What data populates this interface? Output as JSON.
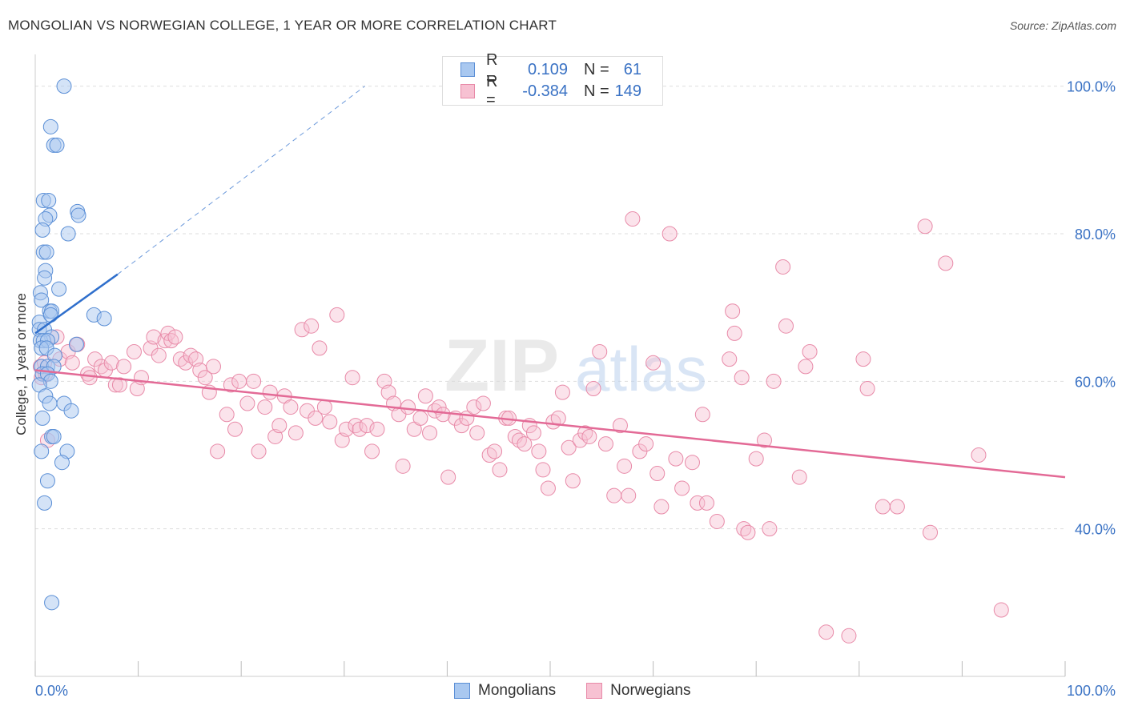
{
  "header": {
    "title": "MONGOLIAN VS NORWEGIAN COLLEGE, 1 YEAR OR MORE CORRELATION CHART",
    "source": "Source: ZipAtlas.com"
  },
  "legend": {
    "r_label": "R =",
    "n_label": "N =",
    "series": [
      {
        "name": "Mongolians",
        "r": "0.109",
        "n": "61"
      },
      {
        "name": "Norwegians",
        "r": "-0.384",
        "n": "149"
      }
    ]
  },
  "colors": {
    "mongolian_fill": "#a9c8f0",
    "mongolian_stroke": "#5b8fd6",
    "mongolian_line": "#2f6fcc",
    "norwegian_fill": "#f7c1d2",
    "norwegian_stroke": "#e88aa8",
    "norwegian_line": "#e36a96",
    "axis_label": "#3a72c4",
    "grid": "#dddddd"
  },
  "watermark": {
    "zip": "ZIP",
    "atlas": "atlas"
  },
  "chart_data": {
    "type": "scatter",
    "title": "MONGOLIAN VS NORWEGIAN COLLEGE, 1 YEAR OR MORE CORRELATION CHART",
    "xlabel": "",
    "ylabel": "College, 1 year or more",
    "xlim": [
      0,
      100
    ],
    "ylim": [
      20,
      103
    ],
    "x_tick_labels": [
      "0.0%",
      "100.0%"
    ],
    "y_ticks": [
      40,
      60,
      80,
      100
    ],
    "y_tick_labels": [
      "40.0%",
      "60.0%",
      "80.0%",
      "100.0%"
    ],
    "grid": true,
    "series": [
      {
        "name": "Mongolians",
        "trend": {
          "x": [
            0,
            8
          ],
          "y": [
            66.5,
            74.5
          ],
          "extended_to": [
            32,
            100
          ]
        },
        "points": [
          [
            2.8,
            100
          ],
          [
            1.5,
            94.5
          ],
          [
            1.8,
            92
          ],
          [
            2.1,
            92
          ],
          [
            0.8,
            84.5
          ],
          [
            1.3,
            84.5
          ],
          [
            1.4,
            82.5
          ],
          [
            4.1,
            83
          ],
          [
            4.2,
            82.5
          ],
          [
            1.0,
            82
          ],
          [
            0.7,
            80.5
          ],
          [
            3.2,
            80
          ],
          [
            0.8,
            77.5
          ],
          [
            1.1,
            77.5
          ],
          [
            1.0,
            75
          ],
          [
            0.9,
            74
          ],
          [
            2.3,
            72.5
          ],
          [
            0.5,
            72
          ],
          [
            0.6,
            71
          ],
          [
            0.4,
            68
          ],
          [
            1.4,
            69.5
          ],
          [
            1.6,
            69.5
          ],
          [
            1.5,
            69
          ],
          [
            5.7,
            69
          ],
          [
            6.7,
            68.5
          ],
          [
            0.4,
            67
          ],
          [
            0.9,
            67
          ],
          [
            1.6,
            66
          ],
          [
            0.5,
            65.5
          ],
          [
            0.8,
            65.5
          ],
          [
            1.2,
            65.5
          ],
          [
            4.0,
            65
          ],
          [
            0.6,
            64.5
          ],
          [
            1.1,
            64.5
          ],
          [
            1.9,
            63.5
          ],
          [
            0.6,
            62
          ],
          [
            1.2,
            62
          ],
          [
            1.8,
            62
          ],
          [
            0.7,
            61
          ],
          [
            1.2,
            61
          ],
          [
            1.5,
            60
          ],
          [
            0.4,
            59.5
          ],
          [
            1.0,
            58
          ],
          [
            1.4,
            57
          ],
          [
            2.8,
            57
          ],
          [
            3.5,
            56
          ],
          [
            0.7,
            55
          ],
          [
            1.6,
            52.5
          ],
          [
            1.8,
            52.5
          ],
          [
            0.6,
            50.5
          ],
          [
            3.1,
            50.5
          ],
          [
            2.6,
            49
          ],
          [
            1.2,
            46.5
          ],
          [
            0.9,
            43.5
          ],
          [
            1.6,
            30
          ]
        ]
      },
      {
        "name": "Norwegians",
        "trend": {
          "x": [
            0,
            100
          ],
          "y": [
            61.5,
            47
          ]
        },
        "points": [
          [
            0.5,
            62
          ],
          [
            0.6,
            60.5
          ],
          [
            0.9,
            62.5
          ],
          [
            1.0,
            61
          ],
          [
            1.2,
            52
          ],
          [
            2.1,
            66
          ],
          [
            2.4,
            63
          ],
          [
            3.2,
            64
          ],
          [
            3.6,
            62.5
          ],
          [
            4.1,
            65
          ],
          [
            5.1,
            61
          ],
          [
            5.3,
            60.5
          ],
          [
            5.8,
            63
          ],
          [
            6.4,
            62
          ],
          [
            6.8,
            61.5
          ],
          [
            7.4,
            62.5
          ],
          [
            7.8,
            59.5
          ],
          [
            8.2,
            59.5
          ],
          [
            8.6,
            62
          ],
          [
            9.6,
            64
          ],
          [
            9.9,
            59
          ],
          [
            10.3,
            60.5
          ],
          [
            11.2,
            64.5
          ],
          [
            11.5,
            66
          ],
          [
            12.0,
            63.5
          ],
          [
            12.6,
            65.5
          ],
          [
            12.9,
            66.5
          ],
          [
            13.2,
            65.5
          ],
          [
            13.6,
            66
          ],
          [
            14.1,
            63
          ],
          [
            14.6,
            62.5
          ],
          [
            15.1,
            63.5
          ],
          [
            15.6,
            63
          ],
          [
            16.0,
            61.5
          ],
          [
            16.5,
            60.5
          ],
          [
            16.9,
            58.5
          ],
          [
            17.3,
            62
          ],
          [
            17.7,
            50.5
          ],
          [
            18.6,
            55.5
          ],
          [
            19.0,
            59.5
          ],
          [
            19.4,
            53.5
          ],
          [
            19.8,
            60
          ],
          [
            20.6,
            57
          ],
          [
            21.2,
            60
          ],
          [
            21.7,
            50.5
          ],
          [
            22.3,
            56.5
          ],
          [
            22.8,
            58.5
          ],
          [
            23.3,
            52.5
          ],
          [
            23.7,
            54
          ],
          [
            24.2,
            58
          ],
          [
            24.8,
            56.5
          ],
          [
            25.3,
            53
          ],
          [
            25.9,
            67
          ],
          [
            26.4,
            56
          ],
          [
            26.8,
            67.5
          ],
          [
            27.2,
            55
          ],
          [
            27.6,
            64.5
          ],
          [
            28.1,
            56.5
          ],
          [
            28.6,
            54.5
          ],
          [
            29.3,
            69
          ],
          [
            29.8,
            52
          ],
          [
            30.2,
            53.5
          ],
          [
            30.8,
            60.5
          ],
          [
            31.1,
            54
          ],
          [
            31.5,
            53.5
          ],
          [
            32.2,
            54
          ],
          [
            32.7,
            50.5
          ],
          [
            33.2,
            53.5
          ],
          [
            33.9,
            60
          ],
          [
            34.3,
            58.5
          ],
          [
            34.8,
            57
          ],
          [
            35.3,
            55.5
          ],
          [
            35.7,
            48.5
          ],
          [
            36.2,
            56.5
          ],
          [
            36.8,
            53.5
          ],
          [
            37.4,
            55
          ],
          [
            37.9,
            58
          ],
          [
            38.3,
            53
          ],
          [
            38.8,
            56
          ],
          [
            39.2,
            56.5
          ],
          [
            39.6,
            55.5
          ],
          [
            40.1,
            47
          ],
          [
            40.8,
            55
          ],
          [
            41.4,
            54
          ],
          [
            41.9,
            55
          ],
          [
            42.6,
            56.5
          ],
          [
            42.9,
            53
          ],
          [
            43.5,
            57
          ],
          [
            44.1,
            50
          ],
          [
            44.6,
            50.5
          ],
          [
            45.1,
            48
          ],
          [
            45.7,
            55
          ],
          [
            46.0,
            55
          ],
          [
            46.6,
            52.5
          ],
          [
            47.0,
            52
          ],
          [
            47.5,
            51.5
          ],
          [
            48.0,
            54
          ],
          [
            48.4,
            53
          ],
          [
            48.9,
            50.5
          ],
          [
            49.3,
            48
          ],
          [
            49.8,
            45.5
          ],
          [
            50.3,
            54.5
          ],
          [
            50.8,
            55
          ],
          [
            51.2,
            58.5
          ],
          [
            51.8,
            51
          ],
          [
            52.2,
            46.5
          ],
          [
            52.9,
            52
          ],
          [
            53.4,
            53
          ],
          [
            53.8,
            52.5
          ],
          [
            54.2,
            59
          ],
          [
            54.8,
            64
          ],
          [
            55.4,
            51.5
          ],
          [
            56.2,
            44.5
          ],
          [
            56.8,
            54
          ],
          [
            57.2,
            48.5
          ],
          [
            57.6,
            44.5
          ],
          [
            58.0,
            82
          ],
          [
            58.7,
            50.5
          ],
          [
            59.3,
            51.5
          ],
          [
            60.0,
            62.5
          ],
          [
            60.4,
            47.5
          ],
          [
            60.8,
            43
          ],
          [
            61.6,
            80
          ],
          [
            62.2,
            49.5
          ],
          [
            62.8,
            45.5
          ],
          [
            63.8,
            49
          ],
          [
            64.3,
            43.5
          ],
          [
            64.8,
            55.5
          ],
          [
            65.2,
            43.5
          ],
          [
            66.2,
            41
          ],
          [
            67.4,
            63
          ],
          [
            67.7,
            69.5
          ],
          [
            67.9,
            66.5
          ],
          [
            68.6,
            60.5
          ],
          [
            68.8,
            40
          ],
          [
            69.2,
            39.5
          ],
          [
            70.0,
            49.5
          ],
          [
            70.8,
            52
          ],
          [
            71.3,
            40
          ],
          [
            71.7,
            60
          ],
          [
            72.6,
            75.5
          ],
          [
            72.9,
            67.5
          ],
          [
            74.2,
            47
          ],
          [
            74.8,
            62
          ],
          [
            75.2,
            64
          ],
          [
            76.8,
            26
          ],
          [
            79.0,
            25.5
          ],
          [
            80.4,
            63
          ],
          [
            80.8,
            59
          ],
          [
            82.3,
            43
          ],
          [
            83.7,
            43
          ],
          [
            86.4,
            81
          ],
          [
            86.9,
            39.5
          ],
          [
            88.4,
            76
          ],
          [
            91.6,
            50
          ],
          [
            93.8,
            29
          ]
        ]
      }
    ]
  }
}
